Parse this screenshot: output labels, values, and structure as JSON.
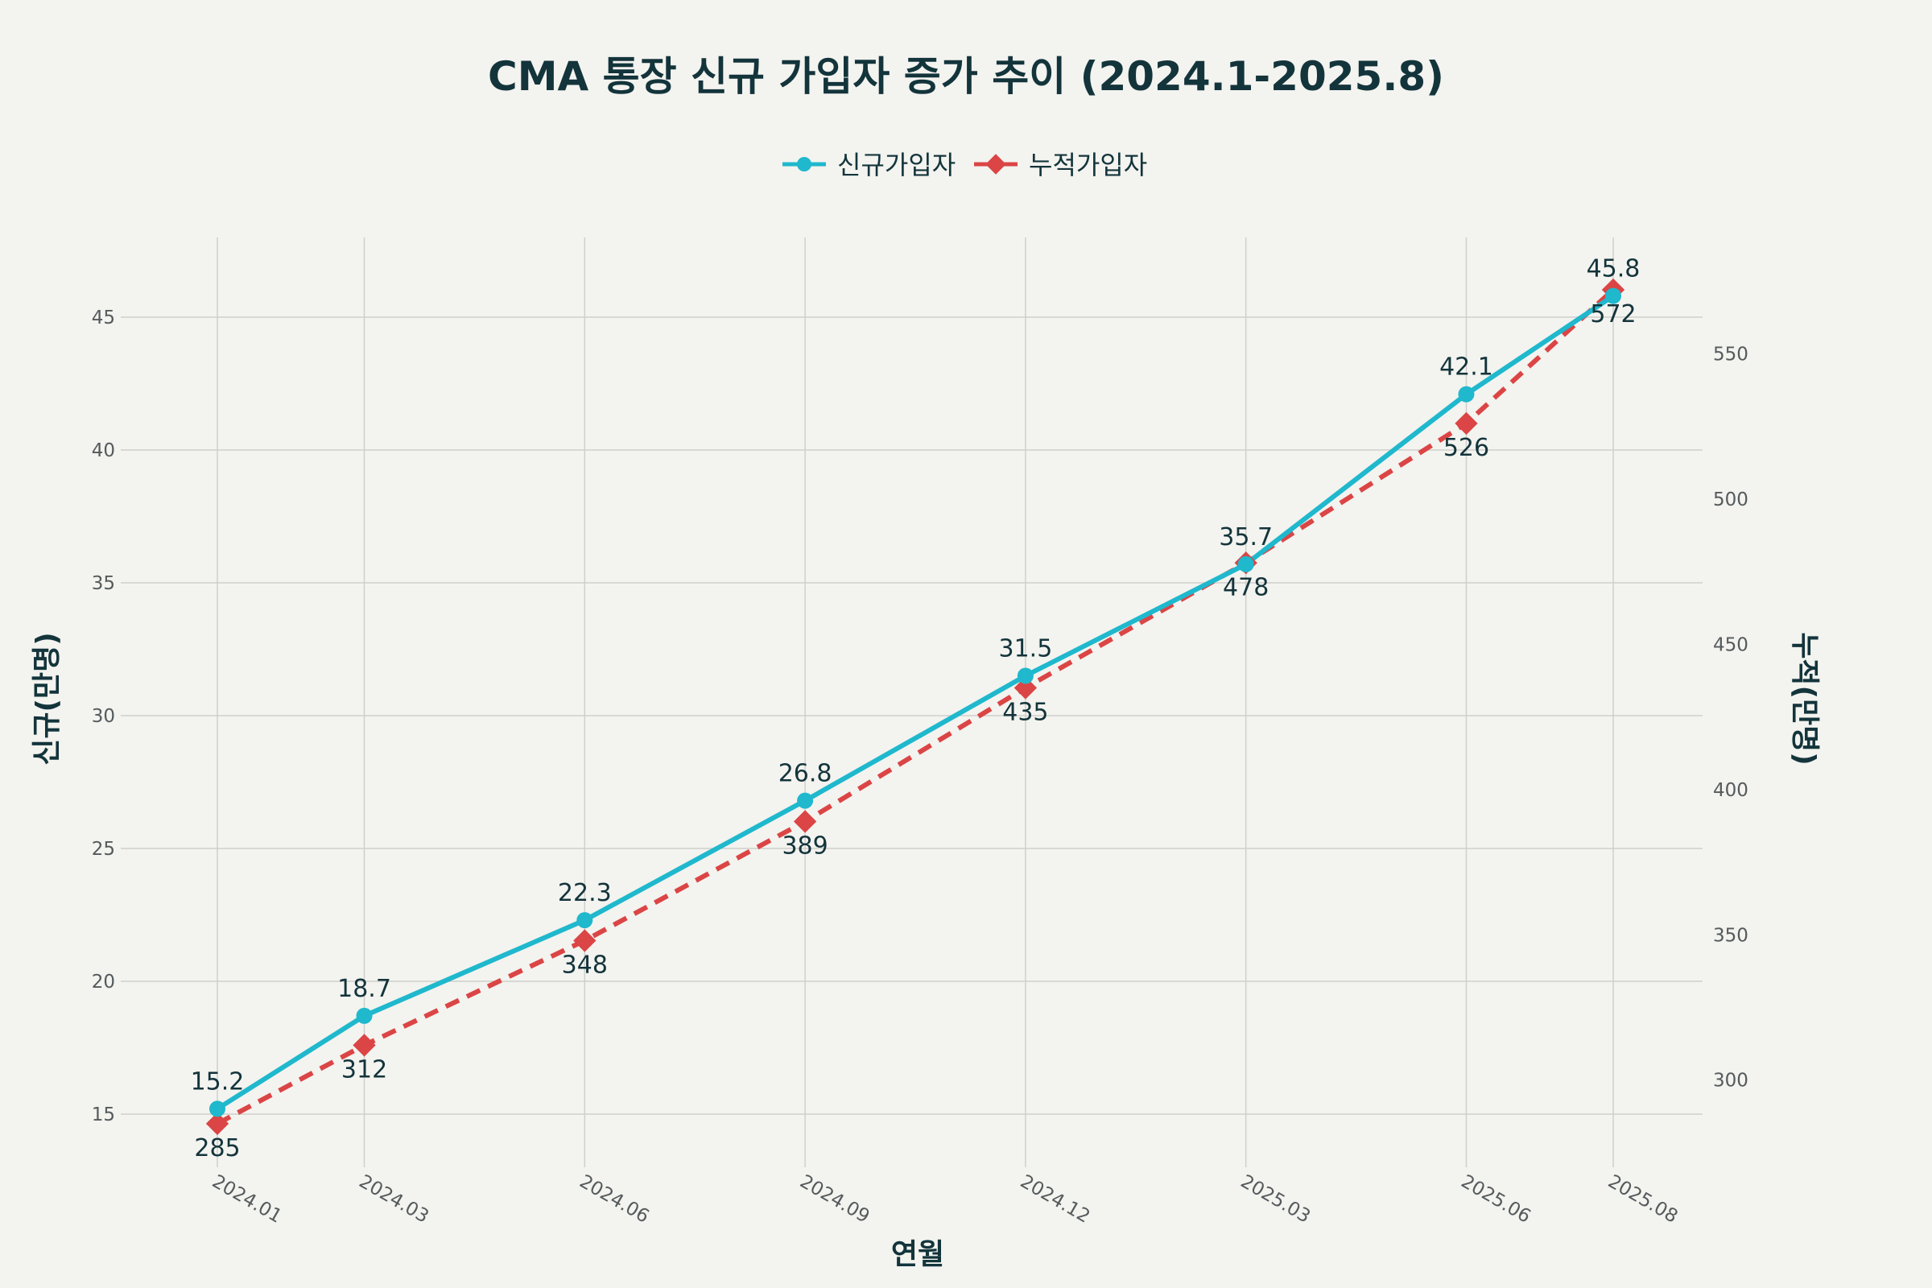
{
  "chart_data": {
    "type": "line",
    "title": "CMA 통장 신규 가입자 증가 추이 (2024.1-2025.8)",
    "xlabel": "연월",
    "ylabel_left": "신규(만명)",
    "ylabel_right": "누적(만명)",
    "x": [
      "2024.01",
      "2024.03",
      "2024.06",
      "2024.09",
      "2024.12",
      "2025.03",
      "2025.06",
      "2025.08"
    ],
    "ylim_left": [
      13,
      48
    ],
    "ylim_right": [
      270,
      590
    ],
    "yticks_left": [
      15,
      20,
      25,
      30,
      35,
      40,
      45
    ],
    "yticks_right": [
      300,
      350,
      400,
      450,
      500,
      550
    ],
    "grid": true,
    "legend_position": "top-center",
    "series": [
      {
        "name": "신규가입자",
        "axis": "left",
        "color": "#1fb8cd",
        "marker": "circle",
        "dash": "solid",
        "values": [
          15.2,
          18.7,
          22.3,
          26.8,
          31.5,
          35.7,
          42.1,
          45.8
        ],
        "labels": [
          "15.2",
          "18.7",
          "22.3",
          "26.8",
          "31.5",
          "35.7",
          "42.1",
          "45.8"
        ]
      },
      {
        "name": "누적가입자",
        "axis": "right",
        "color": "#db4545",
        "marker": "diamond",
        "dash": "dashed",
        "values": [
          285,
          312,
          348,
          389,
          435,
          478,
          526,
          572
        ],
        "labels": [
          "285",
          "312",
          "348",
          "389",
          "435",
          "478",
          "526",
          "572"
        ]
      }
    ]
  }
}
